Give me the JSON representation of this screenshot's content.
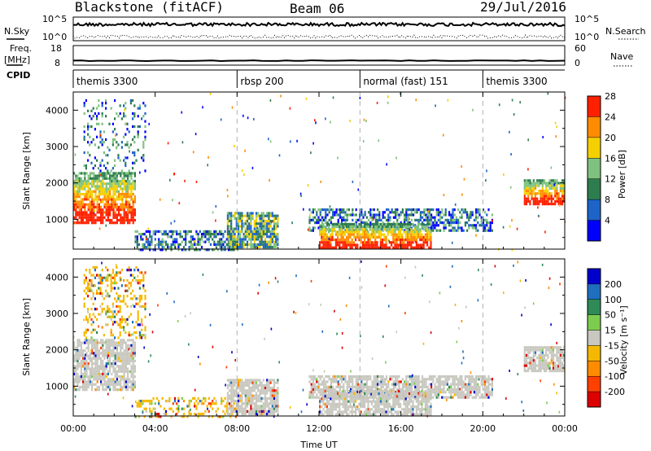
{
  "header": {
    "station": "Blackstone (fitACF)",
    "beam": "Beam 06",
    "date": "29/Jul/2016"
  },
  "sky_panel": {
    "left_label": "N.Sky",
    "right_label": "N.Search",
    "left_ticks": [
      "10^5",
      "10^0"
    ],
    "right_ticks": [
      "10^5",
      "10^0"
    ]
  },
  "freq_panel": {
    "left_label": "Freq.",
    "left_unit": "[MHz]",
    "right_label": "Nave",
    "left_ticks": [
      "18",
      "8"
    ],
    "right_ticks": [
      "60",
      "0"
    ]
  },
  "cpid": {
    "label": "CPID",
    "segments": [
      {
        "name": "themis 3300",
        "start_hour": 0
      },
      {
        "name": "rbsp 200",
        "start_hour": 8
      },
      {
        "name": "normal (fast) 151",
        "start_hour": 14
      },
      {
        "name": "themis 3300",
        "start_hour": 20
      }
    ]
  },
  "colors": {
    "power": [
      "#0000ff",
      "#1e64c8",
      "#2e7d4e",
      "#7fc27f",
      "#f5d000",
      "#ff8c00",
      "#ff2000"
    ],
    "velocity": [
      "#0000cc",
      "#1f6fbf",
      "#2e8b57",
      "#7ccd4f",
      "#c8c8c0",
      "#f5b800",
      "#ff8c00",
      "#ff4000",
      "#dd0000"
    ]
  },
  "chart_data": [
    {
      "type": "heatmap",
      "ylabel": "Slant Range [km]",
      "xlabel": "Time UT",
      "x_range_hours": [
        0,
        24
      ],
      "ylim": [
        180,
        4500
      ],
      "y_ticks": [
        1000,
        2000,
        3000,
        4000
      ],
      "x_ticks": [
        "00:00",
        "04:00",
        "08:00",
        "12:00",
        "16:00",
        "20:00",
        "00:00"
      ],
      "colorbar": {
        "title": "Power [dB]",
        "ticks": [
          "4",
          "8",
          "12",
          "16",
          "20",
          "24",
          "28"
        ]
      },
      "echo_regions": [
        {
          "t_start": 0.0,
          "t_end": 3.0,
          "r_low": 900,
          "r_high": 2300,
          "level": "strong"
        },
        {
          "t_start": 0.5,
          "t_end": 3.5,
          "r_low": 2300,
          "r_high": 4300,
          "level": "scattered"
        },
        {
          "t_start": 3.0,
          "t_end": 8.0,
          "r_low": 180,
          "r_high": 700,
          "level": "weak"
        },
        {
          "t_start": 7.5,
          "t_end": 10.0,
          "r_low": 200,
          "r_high": 1200,
          "level": "moderate"
        },
        {
          "t_start": 11.5,
          "t_end": 20.5,
          "r_low": 700,
          "r_high": 1300,
          "level": "weak"
        },
        {
          "t_start": 12.0,
          "t_end": 17.5,
          "r_low": 200,
          "r_high": 900,
          "level": "strong"
        },
        {
          "t_start": 22.0,
          "t_end": 24.0,
          "r_low": 1400,
          "r_high": 2100,
          "level": "strong"
        }
      ]
    },
    {
      "type": "heatmap",
      "ylabel": "Slant Range [km]",
      "xlabel": "Time UT",
      "x_range_hours": [
        0,
        24
      ],
      "ylim": [
        180,
        4500
      ],
      "y_ticks": [
        1000,
        2000,
        3000,
        4000
      ],
      "x_ticks": [
        "00:00",
        "04:00",
        "08:00",
        "12:00",
        "16:00",
        "20:00",
        "00:00"
      ],
      "colorbar": {
        "title": "Velocity [m s⁻¹]",
        "ticks": [
          "200",
          "100",
          "50",
          "15",
          "-15",
          "-50",
          "-100",
          "-200"
        ]
      },
      "echo_regions": [
        {
          "t_start": 0.0,
          "t_end": 3.0,
          "r_low": 900,
          "r_high": 2300,
          "level": "ground"
        },
        {
          "t_start": 0.5,
          "t_end": 3.5,
          "r_low": 2300,
          "r_high": 4300,
          "level": "negative"
        },
        {
          "t_start": 3.0,
          "t_end": 8.0,
          "r_low": 180,
          "r_high": 700,
          "level": "negative"
        },
        {
          "t_start": 7.5,
          "t_end": 10.0,
          "r_low": 200,
          "r_high": 1200,
          "level": "ground"
        },
        {
          "t_start": 11.5,
          "t_end": 20.5,
          "r_low": 700,
          "r_high": 1300,
          "level": "ground"
        },
        {
          "t_start": 12.0,
          "t_end": 17.5,
          "r_low": 200,
          "r_high": 900,
          "level": "ground"
        },
        {
          "t_start": 22.0,
          "t_end": 24.0,
          "r_low": 1400,
          "r_high": 2100,
          "level": "ground"
        }
      ]
    }
  ]
}
